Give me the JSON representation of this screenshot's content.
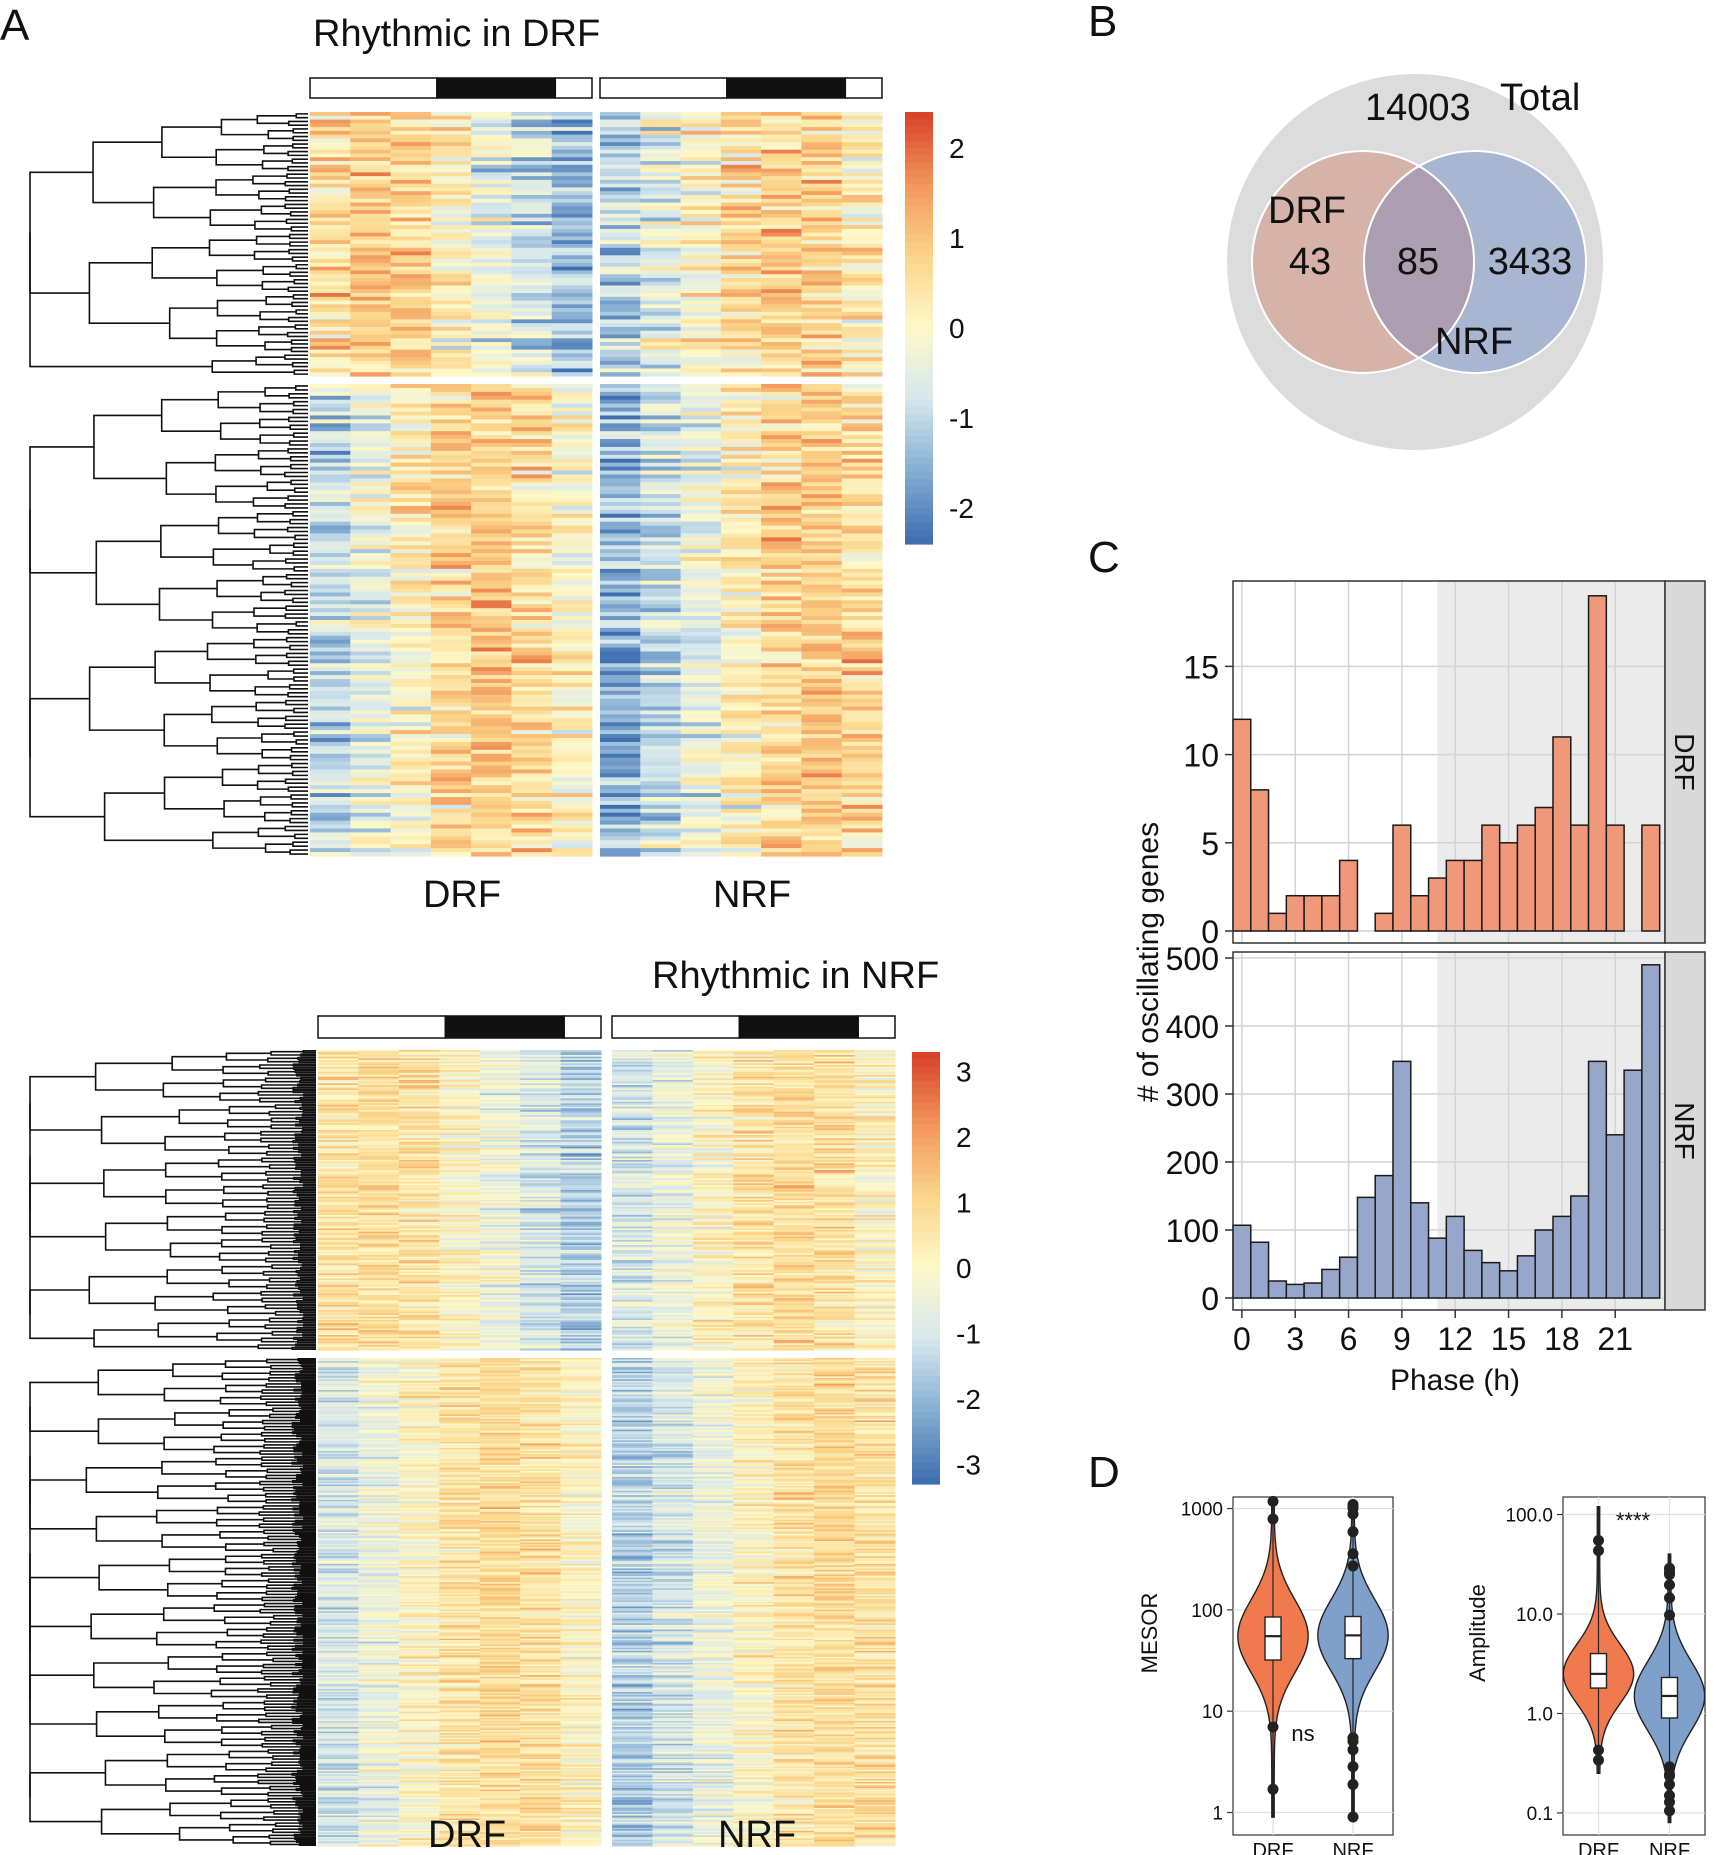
{
  "panels": {
    "a": "A",
    "b": "B",
    "c": "C",
    "d": "D"
  },
  "heatmaps": [
    {
      "title": "Rhythmic in DRF",
      "group_labels": [
        "DRF",
        "NRF"
      ],
      "color_scale": {
        "min": -2.4,
        "max": 2.4,
        "ticks": [
          2,
          1,
          0,
          -1,
          -2
        ],
        "tick_labels": [
          "2",
          "1",
          "0",
          "-1",
          "-2"
        ],
        "colors": [
          "#3f6fb0",
          "#87afd3",
          "#d6e8ee",
          "#fdf8c8",
          "#fbd58a",
          "#f3985c",
          "#d9432a"
        ]
      },
      "light_dark_bar": [
        {
          "state": "light",
          "frac": 0.45
        },
        {
          "state": "dark",
          "frac": 0.42
        },
        {
          "state": "light",
          "frac": 0.13
        }
      ],
      "cluster_rows": [
        70,
        120
      ],
      "columns_per_group": 7
    },
    {
      "title": "Rhythmic in NRF",
      "group_labels": [
        "DRF",
        "NRF"
      ],
      "color_scale": {
        "min": -3.3,
        "max": 3.3,
        "ticks": [
          3,
          2,
          1,
          0,
          -1,
          -2,
          -3
        ],
        "tick_labels": [
          "3",
          "2",
          "1",
          "0",
          "-1",
          "-2",
          "-3"
        ],
        "colors": [
          "#3f6fb0",
          "#87afd3",
          "#d6e8ee",
          "#fdf8c8",
          "#fbd58a",
          "#f3985c",
          "#d9432a"
        ]
      },
      "light_dark_bar": [
        {
          "state": "light",
          "frac": 0.45
        },
        {
          "state": "dark",
          "frac": 0.42
        },
        {
          "state": "light",
          "frac": 0.13
        }
      ],
      "cluster_rows": [
        180,
        320
      ],
      "columns_per_group": 7
    }
  ],
  "venn": {
    "total_label": "Total",
    "total_value": "14003",
    "drf_label": "DRF",
    "drf_only": "43",
    "overlap": "85",
    "nrf_label": "NRF",
    "nrf_only": "3433",
    "colors": {
      "total": "#dcdcdc",
      "drf": "#d6b3a8",
      "nrf": "#a9b6d2",
      "overlap": "#ad9db0"
    }
  },
  "chart_data": [
    {
      "type": "bar",
      "title": "",
      "xlabel": "Phase (h)",
      "ylabel": "# of oscillating genes",
      "x_ticks": [
        0,
        3,
        6,
        9,
        12,
        15,
        18,
        21
      ],
      "x_tick_labels": [
        "0",
        "3",
        "6",
        "9",
        "12",
        "15",
        "18",
        "21"
      ],
      "bin_width_h": 1,
      "dark_phase_start_h": 11,
      "facets": [
        {
          "name": "DRF",
          "color": "#f0987a",
          "ylim": [
            0,
            19.5
          ],
          "y_ticks": [
            0,
            5,
            10,
            15
          ],
          "y_tick_labels": [
            "0",
            "5",
            "10",
            "15"
          ],
          "x": [
            0,
            1,
            2,
            3,
            4,
            5,
            6,
            8,
            9,
            10,
            11,
            12,
            13,
            14,
            15,
            16,
            17,
            18,
            19,
            20,
            21,
            23
          ],
          "values": [
            12,
            8,
            1,
            2,
            2,
            2,
            4,
            1,
            6,
            2,
            3,
            4,
            4,
            6,
            5,
            6,
            7,
            11,
            6,
            19,
            6,
            6
          ]
        },
        {
          "name": "NRF",
          "color": "#97a7cc",
          "ylim": [
            0,
            500
          ],
          "y_ticks": [
            0,
            100,
            200,
            300,
            400,
            500
          ],
          "y_tick_labels": [
            "0",
            "100",
            "200",
            "300",
            "400",
            "500"
          ],
          "x": [
            0,
            1,
            2,
            3,
            4,
            5,
            6,
            7,
            8,
            9,
            10,
            11,
            12,
            13,
            14,
            15,
            16,
            17,
            18,
            19,
            20,
            21,
            22,
            23
          ],
          "values": [
            107,
            82,
            25,
            20,
            22,
            42,
            60,
            148,
            180,
            348,
            140,
            88,
            120,
            70,
            52,
            40,
            62,
            100,
            120,
            150,
            348,
            240,
            335,
            490
          ]
        }
      ]
    },
    {
      "type": "violin",
      "title": "",
      "xlabel": "",
      "ylabel": "MESOR",
      "scale": "log10",
      "ylim": [
        0.6,
        1300
      ],
      "y_ticks": [
        1,
        10,
        100,
        1000
      ],
      "y_tick_labels": [
        "1",
        "10",
        "100",
        "1000"
      ],
      "categories": [
        "DRF",
        "NRF"
      ],
      "colors": [
        "#f07a4e",
        "#7fa0cb"
      ],
      "box": [
        {
          "q1": 32,
          "median": 55,
          "q3": 85,
          "min": 0.9,
          "max": 1200
        },
        {
          "q1": 33,
          "median": 56,
          "q3": 86,
          "min": 0.9,
          "max": 1100
        }
      ],
      "annotation": "ns"
    },
    {
      "type": "violin",
      "title": "",
      "xlabel": "",
      "ylabel": "Amplitude",
      "scale": "log10",
      "ylim": [
        0.06,
        150
      ],
      "y_ticks": [
        0.1,
        1,
        10,
        100
      ],
      "y_tick_labels": [
        "0.1",
        "1.0",
        "10.0",
        "100.0"
      ],
      "categories": [
        "DRF",
        "NRF"
      ],
      "colors": [
        "#f07a4e",
        "#7fa0cb"
      ],
      "box": [
        {
          "q1": 1.8,
          "median": 2.5,
          "q3": 4.0,
          "min": 0.25,
          "max": 120
        },
        {
          "q1": 0.9,
          "median": 1.5,
          "q3": 2.3,
          "min": 0.08,
          "max": 40
        }
      ],
      "annotation": "****"
    }
  ]
}
